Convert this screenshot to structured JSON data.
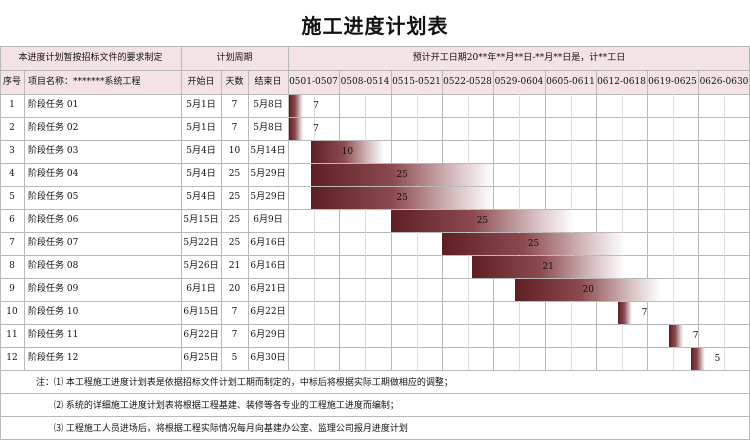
{
  "title": "施工进度计划表",
  "header": {
    "note_left": "本进度计划暂按招标文件的要求制定",
    "plan_period": "计划周期",
    "plan_summary": "预计开工日期20**年**月**日-**月**日是，计**工日",
    "col_index": "序号",
    "col_project": "项目名称：*******系统工程",
    "col_start": "开始日",
    "col_days": "天数",
    "col_end": "结束日",
    "weeks": [
      "0501-0507",
      "0508-0514",
      "0515-0521",
      "0522-0528",
      "0529-0604",
      "0605-0611",
      "0612-0618",
      "0619-0625",
      "0626-0630"
    ]
  },
  "tasks": [
    {
      "no": "1",
      "name": "阶段任务 01",
      "start": "5月1日",
      "days": "7",
      "end": "5月8日",
      "offset": 0,
      "duration": 7
    },
    {
      "no": "2",
      "name": "阶段任务 02",
      "start": "5月1日",
      "days": "7",
      "end": "5月8日",
      "offset": 0,
      "duration": 7
    },
    {
      "no": "3",
      "name": "阶段任务 03",
      "start": "5月4日",
      "days": "10",
      "end": "5月14日",
      "offset": 3,
      "duration": 10
    },
    {
      "no": "4",
      "name": "阶段任务 04",
      "start": "5月4日",
      "days": "25",
      "end": "5月29日",
      "offset": 3,
      "duration": 25
    },
    {
      "no": "5",
      "name": "阶段任务 05",
      "start": "5月4日",
      "days": "25",
      "end": "5月29日",
      "offset": 3,
      "duration": 25
    },
    {
      "no": "6",
      "name": "阶段任务 06",
      "start": "5月15日",
      "days": "25",
      "end": "6月9日",
      "offset": 14,
      "duration": 25
    },
    {
      "no": "7",
      "name": "阶段任务 07",
      "start": "5月22日",
      "days": "25",
      "end": "6月16日",
      "offset": 21,
      "duration": 25
    },
    {
      "no": "8",
      "name": "阶段任务 08",
      "start": "5月26日",
      "days": "21",
      "end": "6月16日",
      "offset": 25,
      "duration": 21
    },
    {
      "no": "9",
      "name": "阶段任务 09",
      "start": "6月1日",
      "days": "20",
      "end": "6月21日",
      "offset": 31,
      "duration": 20
    },
    {
      "no": "10",
      "name": "阶段任务 10",
      "start": "6月15日",
      "days": "7",
      "end": "6月22日",
      "offset": 45,
      "duration": 7
    },
    {
      "no": "11",
      "name": "阶段任务 11",
      "start": "6月22日",
      "days": "7",
      "end": "6月29日",
      "offset": 52,
      "duration": 7
    },
    {
      "no": "12",
      "name": "阶段任务 12",
      "start": "6月25日",
      "days": "5",
      "end": "6月30日",
      "offset": 55,
      "duration": 5
    }
  ],
  "notes": [
    "注：⑴ 本工程施工进度计划表是依据招标文件计划工期而制定的，中标后将根据实际工期做相应的调整；",
    "⑵ 系统的详细施工进度计划表将根据工程基建、装修等各专业的工程施工进度而编制；",
    "⑶ 工程施工人员进场后，将根据工程实际情况每月向基建办公室、监理公司报月进度计划"
  ],
  "colors": {
    "bar_dark": "#5e1f24",
    "header_bg": "#f4e3e4",
    "grid": "#b9b9b9"
  }
}
